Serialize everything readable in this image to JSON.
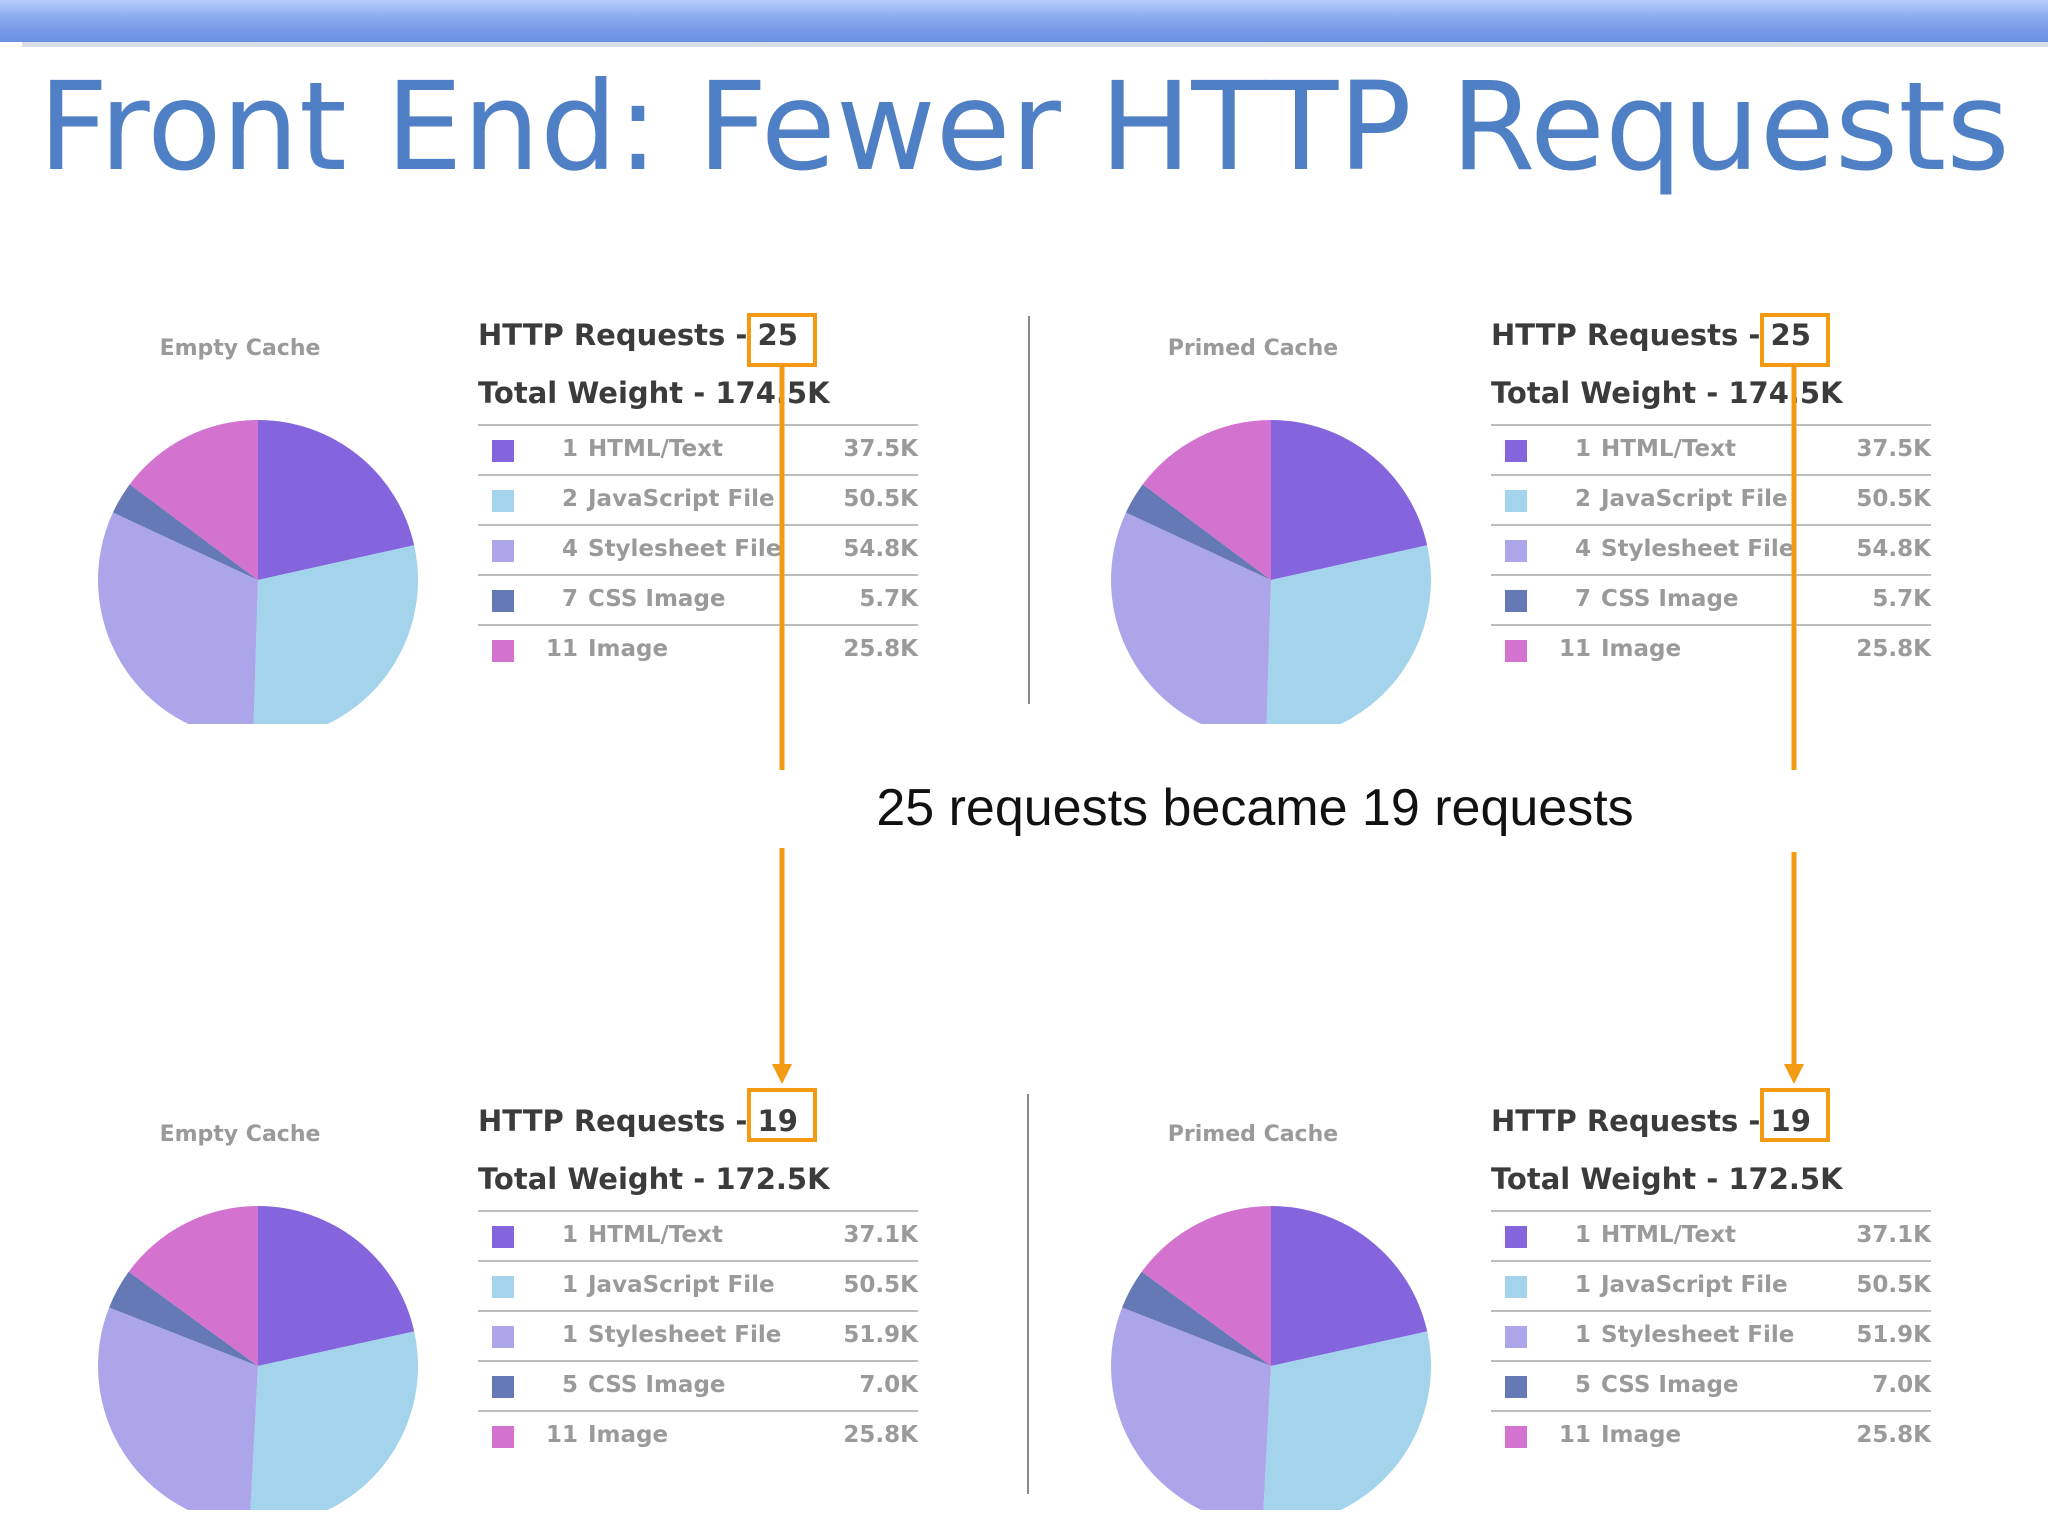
{
  "slide": {
    "title": "Front End: Fewer HTTP Requests",
    "caption": "25 requests became 19 requests"
  },
  "colors": {
    "html_text": "#8565dd",
    "javascript": "#a3d4ec",
    "stylesheet": "#ada5ea",
    "css_image": "#6479b5",
    "image": "#d373cf",
    "highlight": "#f39a12",
    "title": "#4f7fc4"
  },
  "panels": {
    "before_empty": {
      "cache_label": "Empty Cache",
      "requests_label": "HTTP Requests - ",
      "requests_value": "25",
      "weight_text": "Total Weight - 174.5K"
    },
    "before_primed": {
      "cache_label": "Primed Cache",
      "requests_label": "HTTP Requests - ",
      "requests_value": "25",
      "weight_text": "Total Weight - 174.5K"
    },
    "after_empty": {
      "cache_label": "Empty Cache",
      "requests_label": "HTTP Requests - ",
      "requests_value": "19",
      "weight_text": "Total Weight - 172.5K"
    },
    "after_primed": {
      "cache_label": "Primed Cache",
      "requests_label": "HTTP Requests - ",
      "requests_value": "19",
      "weight_text": "Total Weight - 172.5K"
    }
  },
  "chart_data": [
    {
      "type": "pie",
      "title": "Empty Cache",
      "categories": [
        "HTML/Text",
        "JavaScript File",
        "Stylesheet File",
        "CSS Image",
        "Image"
      ],
      "counts": [
        "1",
        "2",
        "4",
        "7",
        "11"
      ],
      "labels": [
        "HTML/Text",
        "JavaScript File",
        "Stylesheet File",
        "CSS Image",
        "Image"
      ],
      "sizes": [
        "37.5K",
        "50.5K",
        "54.8K",
        "5.7K",
        "25.8K"
      ],
      "values": [
        37.5,
        50.5,
        54.8,
        5.7,
        25.8
      ],
      "http_requests": 25,
      "total_weight": "174.5K"
    },
    {
      "type": "pie",
      "title": "Primed Cache",
      "categories": [
        "HTML/Text",
        "JavaScript File",
        "Stylesheet File",
        "CSS Image",
        "Image"
      ],
      "counts": [
        "1",
        "2",
        "4",
        "7",
        "11"
      ],
      "labels": [
        "HTML/Text",
        "JavaScript File",
        "Stylesheet File",
        "CSS Image",
        "Image"
      ],
      "sizes": [
        "37.5K",
        "50.5K",
        "54.8K",
        "5.7K",
        "25.8K"
      ],
      "values": [
        37.5,
        50.5,
        54.8,
        5.7,
        25.8
      ],
      "http_requests": 25,
      "total_weight": "174.5K"
    },
    {
      "type": "pie",
      "title": "Empty Cache",
      "categories": [
        "HTML/Text",
        "JavaScript File",
        "Stylesheet File",
        "CSS Image",
        "Image"
      ],
      "counts": [
        "1",
        "1",
        "1",
        "5",
        "11"
      ],
      "labels": [
        "HTML/Text",
        "JavaScript File",
        "Stylesheet File",
        "CSS Image",
        "Image"
      ],
      "sizes": [
        "37.1K",
        "50.5K",
        "51.9K",
        "7.0K",
        "25.8K"
      ],
      "values": [
        37.1,
        50.5,
        51.9,
        7.0,
        25.8
      ],
      "http_requests": 19,
      "total_weight": "172.5K"
    },
    {
      "type": "pie",
      "title": "Primed Cache",
      "categories": [
        "HTML/Text",
        "JavaScript File",
        "Stylesheet File",
        "CSS Image",
        "Image"
      ],
      "counts": [
        "1",
        "1",
        "1",
        "5",
        "11"
      ],
      "labels": [
        "HTML/Text",
        "JavaScript File",
        "Stylesheet File",
        "CSS Image",
        "Image"
      ],
      "sizes": [
        "37.1K",
        "50.5K",
        "51.9K",
        "7.0K",
        "25.8K"
      ],
      "values": [
        37.1,
        50.5,
        51.9,
        7.0,
        25.8
      ],
      "http_requests": 19,
      "total_weight": "172.5K"
    }
  ]
}
